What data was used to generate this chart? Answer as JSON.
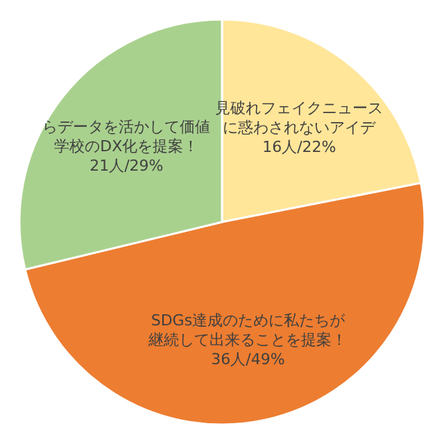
{
  "chart_data": {
    "type": "pie",
    "categories": [
      "見破れフェイクニュースに惑わされないアイデ",
      "SDGs達成のために私たちが継続して出来ることを提案！",
      "らデータを活かして価値学校のDX化を提案！"
    ],
    "values": [
      16,
      36,
      21
    ],
    "value_labels": [
      "16人/22%",
      "36人/49%",
      "21人/29%"
    ],
    "colors": [
      "#ffe699",
      "#ed7d31",
      "#a9d18e"
    ]
  }
}
